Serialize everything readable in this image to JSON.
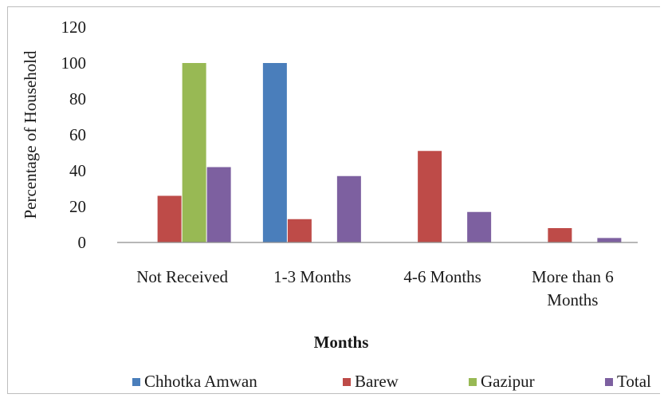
{
  "chart_data": {
    "type": "bar",
    "title": "",
    "xlabel": "Months",
    "ylabel": "Percentage of Household",
    "ylim": [
      0,
      120
    ],
    "yticks": [
      0,
      20,
      40,
      60,
      80,
      100,
      120
    ],
    "grid": false,
    "legend_position": "bottom",
    "categories": [
      [
        "Not Received"
      ],
      [
        "1-3 Months"
      ],
      [
        "4-6 Months"
      ],
      [
        "More than 6",
        "Months"
      ]
    ],
    "series": [
      {
        "name": "Chhotka Amwan",
        "color": "#4a7ebb",
        "values": [
          0,
          100,
          0,
          0
        ]
      },
      {
        "name": "Barew",
        "color": "#be4b48",
        "values": [
          26,
          13,
          51,
          8
        ]
      },
      {
        "name": "Gazipur",
        "color": "#98b954",
        "values": [
          100,
          0,
          0,
          0
        ]
      },
      {
        "name": "Total",
        "color": "#7d60a0",
        "values": [
          42,
          37,
          17,
          2.5
        ]
      }
    ]
  }
}
